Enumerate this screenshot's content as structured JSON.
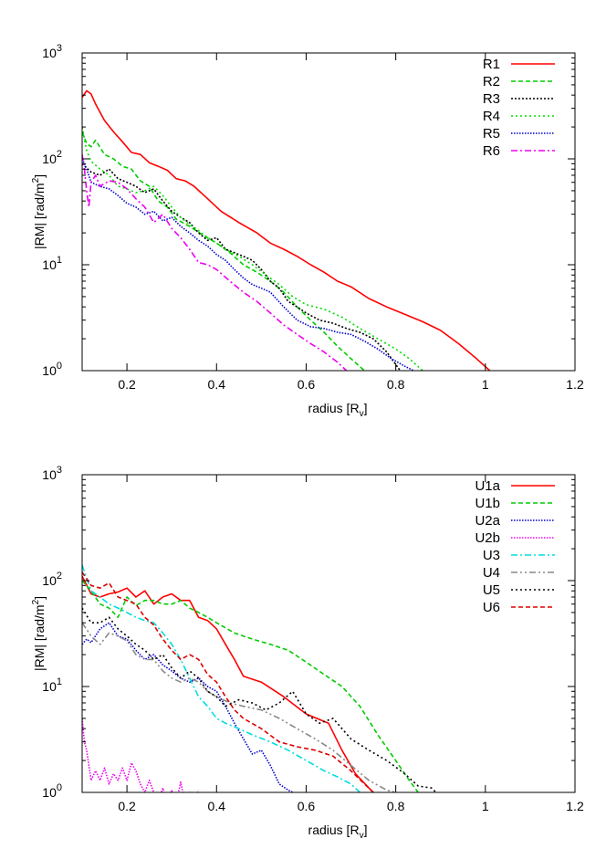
{
  "chart_data": [
    {
      "type": "line",
      "title": "",
      "xlabel": "radius [R",
      "xlabel_sub": "v",
      "xlabel_end": "]",
      "ylabel": "|RM| [rad/m",
      "ylabel_sup": "2",
      "ylabel_end": "]",
      "xlim": [
        0.1,
        1.2
      ],
      "ylim": [
        1,
        1000
      ],
      "yscale": "log",
      "xticks": [
        0.2,
        0.4,
        0.6,
        0.8,
        1,
        1.2
      ],
      "xtick_labels": [
        "0.2",
        "0.4",
        "0.6",
        "0.8",
        "1",
        "1.2"
      ],
      "yticks": [
        1,
        10,
        100,
        1000
      ],
      "ytick_base": "10",
      "ytick_exps": [
        "0",
        "1",
        "2",
        "3"
      ],
      "legend": "top-right",
      "grid": false,
      "series": [
        {
          "name": "R1",
          "color": "#ff0000",
          "dash": "none",
          "x": [
            0.1,
            0.11,
            0.12,
            0.13,
            0.15,
            0.17,
            0.19,
            0.21,
            0.23,
            0.25,
            0.27,
            0.29,
            0.31,
            0.33,
            0.35,
            0.38,
            0.41,
            0.45,
            0.49,
            0.52,
            0.55,
            0.58,
            0.61,
            0.64,
            0.67,
            0.7,
            0.74,
            0.78,
            0.82,
            0.86,
            0.9,
            0.94,
            0.98,
            1.01
          ],
          "y": [
            380,
            440,
            410,
            330,
            230,
            180,
            145,
            115,
            110,
            92,
            85,
            78,
            65,
            62,
            55,
            42,
            32,
            25,
            20,
            16,
            14,
            12,
            10,
            8.5,
            7,
            6.2,
            4.8,
            4,
            3.4,
            2.9,
            2.4,
            1.8,
            1.3,
            1.0
          ]
        },
        {
          "name": "R2",
          "color": "#00cc00",
          "dash": "5,3",
          "x": [
            0.1,
            0.11,
            0.12,
            0.13,
            0.15,
            0.17,
            0.19,
            0.21,
            0.23,
            0.25,
            0.27,
            0.29,
            0.31,
            0.34,
            0.37,
            0.4,
            0.43,
            0.46,
            0.49,
            0.52,
            0.55,
            0.58,
            0.61,
            0.64,
            0.67,
            0.7,
            0.73
          ],
          "y": [
            180,
            140,
            130,
            150,
            110,
            100,
            85,
            80,
            62,
            55,
            40,
            35,
            27,
            23,
            19,
            16,
            13,
            10,
            8.5,
            7,
            5.5,
            4,
            3,
            2.3,
            1.7,
            1.3,
            1.0
          ]
        },
        {
          "name": "R3",
          "color": "#000000",
          "dash": "2,2",
          "x": [
            0.1,
            0.12,
            0.14,
            0.16,
            0.18,
            0.2,
            0.22,
            0.24,
            0.26,
            0.28,
            0.3,
            0.32,
            0.34,
            0.36,
            0.38,
            0.4,
            0.42,
            0.44,
            0.46,
            0.48,
            0.5,
            0.52,
            0.54,
            0.56,
            0.58,
            0.6,
            0.63,
            0.66,
            0.69,
            0.72,
            0.75,
            0.78,
            0.81
          ],
          "y": [
            90,
            75,
            70,
            80,
            65,
            60,
            55,
            48,
            52,
            40,
            32,
            28,
            25,
            20,
            17,
            18,
            14,
            13,
            12,
            11,
            9,
            7,
            6,
            4.5,
            4,
            3.5,
            3,
            2.8,
            2.5,
            2.3,
            2,
            1.5,
            1.0
          ]
        },
        {
          "name": "R4",
          "color": "#00dd00",
          "dash": "2,3",
          "x": [
            0.1,
            0.11,
            0.12,
            0.14,
            0.16,
            0.18,
            0.2,
            0.22,
            0.24,
            0.26,
            0.28,
            0.3,
            0.32,
            0.34,
            0.36,
            0.38,
            0.4,
            0.42,
            0.45,
            0.48,
            0.51,
            0.54,
            0.57,
            0.6,
            0.64,
            0.68,
            0.72,
            0.76,
            0.8,
            0.83,
            0.86
          ],
          "y": [
            200,
            120,
            95,
            80,
            70,
            55,
            52,
            48,
            50,
            55,
            45,
            35,
            28,
            24,
            21,
            18,
            16,
            14,
            12,
            10,
            8,
            6.5,
            5,
            4.2,
            3.8,
            3.2,
            2.5,
            2,
            1.6,
            1.3,
            1.0
          ]
        },
        {
          "name": "R5",
          "color": "#0000cc",
          "dash": "1.5,1.5",
          "x": [
            0.1,
            0.11,
            0.12,
            0.14,
            0.16,
            0.18,
            0.2,
            0.22,
            0.24,
            0.26,
            0.28,
            0.3,
            0.32,
            0.34,
            0.36,
            0.38,
            0.4,
            0.42,
            0.44,
            0.46,
            0.48,
            0.5,
            0.52,
            0.55,
            0.58,
            0.61,
            0.64,
            0.67,
            0.7,
            0.73,
            0.76,
            0.79,
            0.82,
            0.84
          ],
          "y": [
            100,
            80,
            60,
            55,
            52,
            45,
            38,
            35,
            30,
            32,
            26,
            28,
            23,
            20,
            17,
            15,
            12.5,
            11,
            9,
            7.5,
            6.5,
            6,
            5.5,
            4,
            3,
            2.6,
            2.5,
            2.3,
            2.2,
            1.9,
            1.6,
            1.3,
            1.1,
            1.0
          ]
        },
        {
          "name": "R6",
          "color": "#ee00ee",
          "dash": "7,3,2,3",
          "x": [
            0.1,
            0.105,
            0.11,
            0.115,
            0.12,
            0.13,
            0.14,
            0.16,
            0.18,
            0.2,
            0.22,
            0.24,
            0.26,
            0.28,
            0.3,
            0.32,
            0.34,
            0.36,
            0.38,
            0.4,
            0.43,
            0.46,
            0.49,
            0.52,
            0.55,
            0.58,
            0.61,
            0.64,
            0.67,
            0.69
          ],
          "y": [
            110,
            80,
            50,
            35,
            60,
            70,
            55,
            62,
            60,
            52,
            42,
            35,
            25,
            30,
            22,
            18,
            14,
            10.5,
            10,
            9,
            7,
            5.5,
            4.5,
            3.5,
            2.7,
            2.2,
            1.8,
            1.5,
            1.2,
            1.0
          ]
        }
      ]
    },
    {
      "type": "line",
      "title": "",
      "xlabel": "radius [R",
      "xlabel_sub": "v",
      "xlabel_end": "]",
      "ylabel": "|RM| [rad/m",
      "ylabel_sup": "2",
      "ylabel_end": "]",
      "xlim": [
        0.1,
        1.2
      ],
      "ylim": [
        1,
        1000
      ],
      "yscale": "log",
      "xticks": [
        0.2,
        0.4,
        0.6,
        0.8,
        1,
        1.2
      ],
      "xtick_labels": [
        "0.2",
        "0.4",
        "0.6",
        "0.8",
        "1",
        "1.2"
      ],
      "yticks": [
        1,
        10,
        100,
        1000
      ],
      "ytick_base": "10",
      "ytick_exps": [
        "0",
        "1",
        "2",
        "3"
      ],
      "legend": "top-right",
      "grid": false,
      "series": [
        {
          "name": "U1a",
          "color": "#ff0000",
          "dash": "none",
          "x": [
            0.1,
            0.12,
            0.14,
            0.16,
            0.18,
            0.2,
            0.22,
            0.24,
            0.26,
            0.28,
            0.3,
            0.32,
            0.34,
            0.36,
            0.38,
            0.4,
            0.42,
            0.44,
            0.46,
            0.5,
            0.55,
            0.6,
            0.65,
            0.68,
            0.71,
            0.74,
            0.75
          ],
          "y": [
            110,
            75,
            70,
            75,
            78,
            85,
            70,
            80,
            60,
            70,
            75,
            65,
            65,
            45,
            42,
            35,
            25,
            18,
            12.5,
            11,
            8,
            5.5,
            4.5,
            2.5,
            1.5,
            1.1,
            1.0
          ]
        },
        {
          "name": "U1b",
          "color": "#00cc00",
          "dash": "5,3",
          "x": [
            0.1,
            0.12,
            0.14,
            0.16,
            0.18,
            0.2,
            0.22,
            0.24,
            0.26,
            0.28,
            0.3,
            0.32,
            0.34,
            0.36,
            0.38,
            0.4,
            0.44,
            0.48,
            0.52,
            0.56,
            0.6,
            0.64,
            0.68,
            0.72,
            0.76,
            0.8,
            0.83,
            0.85
          ],
          "y": [
            100,
            80,
            60,
            55,
            45,
            70,
            58,
            65,
            65,
            60,
            60,
            65,
            55,
            50,
            45,
            40,
            32,
            28,
            25,
            22,
            17,
            13,
            10,
            6.5,
            3.5,
            2,
            1.3,
            1.0
          ]
        },
        {
          "name": "U2a",
          "color": "#0000cc",
          "dash": "1.5,1.5",
          "x": [
            0.1,
            0.11,
            0.12,
            0.14,
            0.16,
            0.18,
            0.2,
            0.22,
            0.24,
            0.26,
            0.28,
            0.3,
            0.32,
            0.34,
            0.36,
            0.38,
            0.4,
            0.42,
            0.44,
            0.46,
            0.48,
            0.5,
            0.52,
            0.54,
            0.56,
            0.57
          ],
          "y": [
            25,
            28,
            26,
            35,
            40,
            30,
            28,
            22,
            18,
            20,
            16,
            14,
            12,
            11,
            12,
            10,
            9,
            6.5,
            4.5,
            3.2,
            2.3,
            2.5,
            1.8,
            1.2,
            1.05,
            1.0
          ]
        },
        {
          "name": "U2b",
          "color": "#ee00ee",
          "dash": "1.5,1.5",
          "x": [
            0.1,
            0.105,
            0.11,
            0.12,
            0.13,
            0.14,
            0.15,
            0.16,
            0.17,
            0.18,
            0.19,
            0.2,
            0.21,
            0.22,
            0.23,
            0.24,
            0.25,
            0.26,
            0.27,
            0.28,
            0.29,
            0.3,
            0.31,
            0.32,
            0.33,
            0.34,
            0.35,
            0.36
          ],
          "y": [
            5,
            3,
            2.5,
            1.3,
            1.6,
            1.3,
            1.7,
            1.2,
            1.5,
            1.3,
            1.7,
            1.3,
            1.9,
            1.6,
            1.2,
            1.0,
            1.3,
            1.0,
            0.8,
            1.1,
            0.8,
            1.05,
            0.8,
            1.25,
            0.8,
            1.0,
            0.8,
            1.05
          ]
        },
        {
          "name": "U3",
          "color": "#00dddd",
          "dash": "7,3,2,3",
          "x": [
            0.1,
            0.12,
            0.14,
            0.16,
            0.18,
            0.2,
            0.22,
            0.24,
            0.26,
            0.28,
            0.3,
            0.32,
            0.34,
            0.36,
            0.38,
            0.4,
            0.42,
            0.45,
            0.48,
            0.52,
            0.56,
            0.6,
            0.64,
            0.67,
            0.7,
            0.72
          ],
          "y": [
            140,
            80,
            70,
            60,
            55,
            50,
            45,
            42,
            40,
            32,
            25,
            18,
            12,
            8,
            6.5,
            5,
            4.5,
            4,
            3.5,
            3,
            2.5,
            2,
            1.6,
            1.4,
            1.2,
            1.0
          ]
        },
        {
          "name": "U4",
          "color": "#888888",
          "dash": "7,3,2,3,2,3",
          "x": [
            0.1,
            0.12,
            0.14,
            0.16,
            0.18,
            0.2,
            0.22,
            0.24,
            0.26,
            0.28,
            0.3,
            0.32,
            0.34,
            0.36,
            0.38,
            0.4,
            0.43,
            0.46,
            0.5,
            0.54,
            0.58,
            0.62,
            0.66,
            0.7,
            0.74,
            0.78,
            0.8
          ],
          "y": [
            40,
            30,
            25,
            32,
            30,
            27,
            20,
            18,
            18,
            14,
            12,
            11,
            12,
            11,
            9,
            8,
            7,
            6.5,
            6,
            5,
            4,
            3.2,
            2.5,
            1.8,
            1.3,
            1.05,
            1.0
          ]
        },
        {
          "name": "U5",
          "color": "#000000",
          "dash": "2,3",
          "x": [
            0.1,
            0.12,
            0.14,
            0.16,
            0.18,
            0.2,
            0.22,
            0.24,
            0.26,
            0.28,
            0.3,
            0.32,
            0.34,
            0.36,
            0.38,
            0.4,
            0.42,
            0.45,
            0.48,
            0.51,
            0.54,
            0.57,
            0.6,
            0.63,
            0.66,
            0.7,
            0.74,
            0.78,
            0.82,
            0.85,
            0.88,
            0.89
          ],
          "y": [
            55,
            40,
            40,
            45,
            35,
            30,
            25,
            22,
            18,
            20,
            15,
            12,
            14,
            12,
            9,
            8,
            6.5,
            7.5,
            7,
            6,
            7,
            9,
            5.5,
            4.5,
            5,
            3.2,
            2.5,
            2,
            1.5,
            1.15,
            1.1,
            1.0
          ]
        },
        {
          "name": "U6",
          "color": "#dd0000",
          "dash": "5,3",
          "x": [
            0.1,
            0.12,
            0.14,
            0.16,
            0.18,
            0.2,
            0.22,
            0.24,
            0.26,
            0.28,
            0.3,
            0.32,
            0.34,
            0.36,
            0.38,
            0.4,
            0.42,
            0.44,
            0.46,
            0.5,
            0.54,
            0.58,
            0.62,
            0.66,
            0.7,
            0.73,
            0.75
          ],
          "y": [
            120,
            90,
            85,
            95,
            70,
            65,
            60,
            45,
            38,
            28,
            22,
            18,
            20,
            18,
            13,
            11,
            8,
            6,
            5,
            4,
            3,
            2.7,
            2.5,
            2.2,
            1.6,
            1.2,
            1.0
          ]
        }
      ]
    }
  ]
}
